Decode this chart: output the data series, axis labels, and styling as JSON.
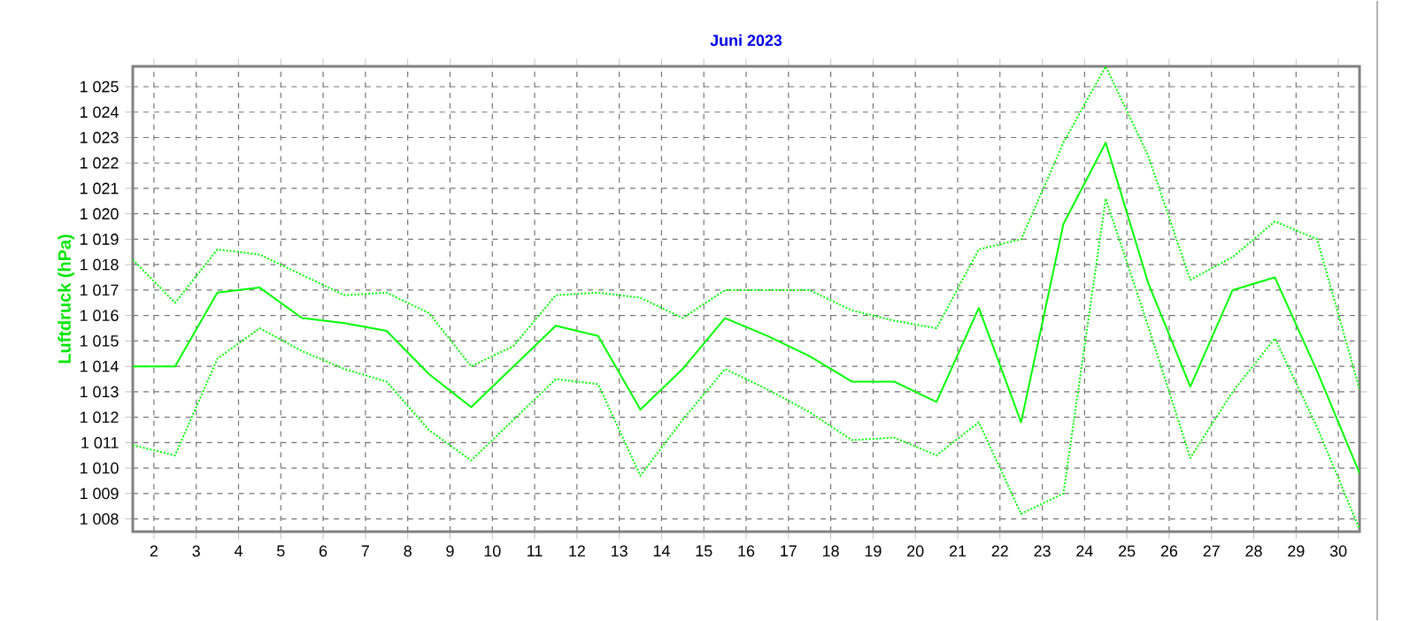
{
  "chart_data": {
    "type": "line",
    "title": "Juni 2023",
    "ylabel": "Luftdruck (hPa)",
    "x": [
      1.5,
      2.5,
      3.5,
      4.5,
      5.5,
      6.5,
      7.5,
      8.5,
      9.5,
      10.5,
      11.5,
      12.5,
      13.5,
      14.5,
      15.5,
      16.5,
      17.5,
      18.5,
      19.5,
      20.5,
      21.5,
      22.5,
      23.5,
      24.5,
      25.5,
      26.5,
      27.5,
      28.5,
      29.5,
      30.5
    ],
    "series": [
      {
        "color": "#00ff00",
        "line_style": "dotted",
        "values": [
          1018.2,
          1016.5,
          1018.6,
          1018.4,
          1017.6,
          1016.8,
          1016.9,
          1016.1,
          1014.0,
          1014.8,
          1016.8,
          1016.9,
          1016.7,
          1015.9,
          1017.0,
          1017.0,
          1017.0,
          1016.2,
          1015.8,
          1015.5,
          1018.6,
          1019.0,
          1022.8,
          1025.8,
          1022.3,
          1017.4,
          1018.3,
          1019.7,
          1019.0,
          1013.1
        ]
      },
      {
        "color": "#00ff00",
        "line_style": "solid",
        "values": [
          1014.0,
          1014.0,
          1016.9,
          1017.1,
          1015.9,
          1015.7,
          1015.4,
          1013.7,
          1012.4,
          1014.0,
          1015.6,
          1015.2,
          1012.3,
          1013.9,
          1015.9,
          1015.2,
          1014.4,
          1013.4,
          1013.4,
          1012.6,
          1016.3,
          1011.8,
          1019.6,
          1022.8,
          1017.3,
          1013.2,
          1017.0,
          1017.5,
          1013.8,
          1009.8
        ]
      },
      {
        "color": "#00ff00",
        "line_style": "dotted",
        "values": [
          1010.9,
          1010.5,
          1014.3,
          1015.5,
          1014.6,
          1013.9,
          1013.4,
          1011.5,
          1010.3,
          1011.9,
          1013.5,
          1013.3,
          1009.7,
          1011.9,
          1013.9,
          1013.1,
          1012.2,
          1011.1,
          1011.2,
          1010.5,
          1011.8,
          1008.2,
          1009.0,
          1020.6,
          1015.6,
          1010.4,
          1013.0,
          1015.1,
          1011.6,
          1007.6
        ]
      }
    ],
    "xlim": [
      1.5,
      30.5
    ],
    "ylim": [
      1007.5,
      1025.8
    ],
    "xticks": [
      2,
      3,
      4,
      5,
      6,
      7,
      8,
      9,
      10,
      11,
      12,
      13,
      14,
      15,
      16,
      17,
      18,
      19,
      20,
      21,
      22,
      23,
      24,
      25,
      26,
      27,
      28,
      29,
      30
    ],
    "yticks": [
      {
        "value": 1008,
        "label": "1 008"
      },
      {
        "value": 1009,
        "label": "1 009"
      },
      {
        "value": 1010,
        "label": "1 010"
      },
      {
        "value": 1011,
        "label": "1 011"
      },
      {
        "value": 1012,
        "label": "1 012"
      },
      {
        "value": 1013,
        "label": "1 013"
      },
      {
        "value": 1014,
        "label": "1 014"
      },
      {
        "value": 1015,
        "label": "1 015"
      },
      {
        "value": 1016,
        "label": "1 016"
      },
      {
        "value": 1017,
        "label": "1 017"
      },
      {
        "value": 1018,
        "label": "1 018"
      },
      {
        "value": 1019,
        "label": "1 019"
      },
      {
        "value": 1020,
        "label": "1 020"
      },
      {
        "value": 1021,
        "label": "1 021"
      },
      {
        "value": 1022,
        "label": "1 022"
      },
      {
        "value": 1023,
        "label": "1 023"
      },
      {
        "value": 1024,
        "label": "1 024"
      },
      {
        "value": 1025,
        "label": "1 025"
      }
    ],
    "grid": true
  }
}
